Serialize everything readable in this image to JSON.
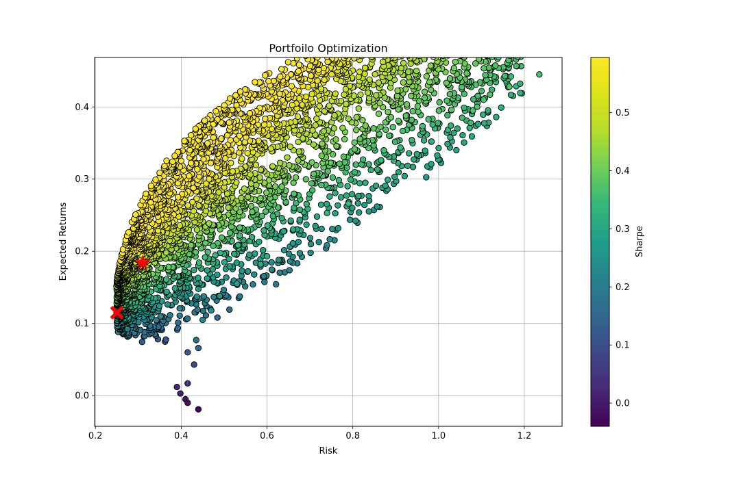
{
  "chart_data": {
    "type": "scatter",
    "title": "Portfoilo Optimization",
    "xlabel": "Risk",
    "ylabel": "Expected Returns",
    "xlim": [
      0.198,
      1.288
    ],
    "ylim": [
      -0.0425,
      0.4685
    ],
    "x_ticks": [
      0.2,
      0.4,
      0.6,
      0.8,
      1.0,
      1.2
    ],
    "x_tick_labels": [
      "0.2",
      "0.4",
      "0.6",
      "0.8",
      "1.0",
      "1.2"
    ],
    "y_ticks": [
      0.0,
      0.1,
      0.2,
      0.3,
      0.4
    ],
    "y_tick_labels": [
      "0.0",
      "0.1",
      "0.2",
      "0.3",
      "0.4"
    ],
    "grid": true,
    "colormap": "viridis",
    "marker_edge_color": "#000000",
    "colorbar": {
      "label": "Sharpe",
      "range": [
        -0.04,
        0.595
      ],
      "ticks": [
        0.0,
        0.1,
        0.2,
        0.3,
        0.4,
        0.5
      ],
      "tick_labels": [
        "0.0",
        "0.1",
        "0.2",
        "0.3",
        "0.4",
        "0.5"
      ]
    },
    "series": [
      {
        "marker": "circle",
        "color_by": "Sharpe",
        "points": [
          {
            "x": 1.235,
            "y": 0.445,
            "c": 0.36
          },
          {
            "x": 1.165,
            "y": 0.428,
            "c": 0.37
          },
          {
            "x": 1.12,
            "y": 0.417,
            "c": 0.37
          },
          {
            "x": 1.105,
            "y": 0.41,
            "c": 0.37
          },
          {
            "x": 1.09,
            "y": 0.4,
            "c": 0.37
          },
          {
            "x": 1.08,
            "y": 0.395,
            "c": 0.36
          },
          {
            "x": 1.055,
            "y": 0.385,
            "c": 0.36
          },
          {
            "x": 1.075,
            "y": 0.378,
            "c": 0.35
          },
          {
            "x": 1.03,
            "y": 0.396,
            "c": 0.38
          },
          {
            "x": 0.79,
            "y": 0.266,
            "c": 0.34
          },
          {
            "x": 0.74,
            "y": 0.253,
            "c": 0.34
          },
          {
            "x": 0.6,
            "y": 0.193,
            "c": 0.32
          },
          {
            "x": 0.585,
            "y": 0.182,
            "c": 0.31
          },
          {
            "x": 0.53,
            "y": 0.155,
            "c": 0.29
          },
          {
            "x": 0.49,
            "y": 0.138,
            "c": 0.28
          },
          {
            "x": 0.47,
            "y": 0.118,
            "c": 0.25
          },
          {
            "x": 0.45,
            "y": 0.105,
            "c": 0.23
          },
          {
            "x": 0.435,
            "y": 0.077,
            "c": 0.18
          },
          {
            "x": 0.44,
            "y": 0.066,
            "c": 0.15
          },
          {
            "x": 0.43,
            "y": 0.043,
            "c": 0.1
          },
          {
            "x": 0.415,
            "y": 0.06,
            "c": 0.14
          },
          {
            "x": 0.415,
            "y": 0.017,
            "c": 0.04
          },
          {
            "x": 0.41,
            "y": -0.005,
            "c": -0.01
          },
          {
            "x": 0.415,
            "y": -0.01,
            "c": -0.02
          },
          {
            "x": 0.44,
            "y": -0.019,
            "c": -0.04
          },
          {
            "x": 0.398,
            "y": 0.003,
            "c": 0.01
          },
          {
            "x": 0.39,
            "y": 0.012,
            "c": 0.03
          }
        ]
      },
      {
        "name": "",
        "marker": "star",
        "color": "#ff0000",
        "points": [
          {
            "x": 0.31,
            "y": 0.184
          }
        ]
      },
      {
        "name": "",
        "marker": "X",
        "color": "#ff0000",
        "points": [
          {
            "x": 0.25,
            "y": 0.115
          }
        ]
      }
    ]
  }
}
